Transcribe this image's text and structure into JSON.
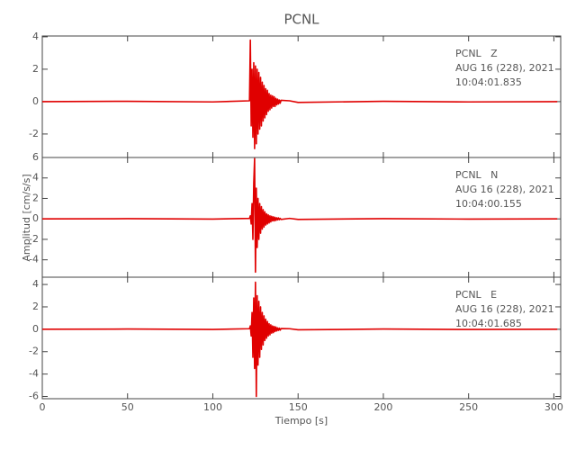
{
  "chart_data": [
    {
      "type": "line",
      "title": "PCNL",
      "annotations": [
        "PCNL   Z",
        "AUG 16 (228), 2021",
        "10:04:01.835"
      ],
      "xlim": [
        0,
        304
      ],
      "xticks": [
        0,
        50,
        100,
        150,
        200,
        250,
        300
      ],
      "ylim": [
        -3.45,
        4.05
      ],
      "yticks": [
        -2,
        0,
        2,
        4
      ],
      "series": [
        {
          "color": "#e00000",
          "x": [
            0,
            50,
            100,
            121.5,
            122,
            122.5,
            123,
            123.5,
            124,
            124.5,
            125,
            125.5,
            126,
            126.5,
            127,
            127.5,
            128,
            128.5,
            129,
            129.5,
            130,
            130.5,
            131,
            131.5,
            132,
            132.5,
            133,
            133.5,
            134,
            134.5,
            135,
            135.5,
            136,
            136.5,
            137,
            137.5,
            138,
            138.5,
            139,
            139.5,
            140,
            145,
            150,
            200,
            250,
            302
          ],
          "values": [
            0,
            0.02,
            -0.02,
            0.05,
            3.8,
            -1.5,
            2.0,
            -2.2,
            2.4,
            -2.9,
            2.2,
            -2.6,
            2.0,
            -2.0,
            1.8,
            -1.7,
            1.5,
            -1.5,
            1.2,
            -1.2,
            1.0,
            -1.0,
            0.8,
            -0.8,
            0.7,
            -0.6,
            0.5,
            -0.5,
            0.4,
            -0.4,
            0.35,
            -0.3,
            0.3,
            -0.3,
            0.2,
            -0.2,
            0.15,
            -0.15,
            0.1,
            -0.1,
            0.08,
            0.05,
            -0.05,
            0.02,
            -0.02,
            0
          ]
        }
      ]
    },
    {
      "type": "line",
      "ylabel": "Amplitud [cm/s/s]",
      "annotations": [
        "PCNL   N",
        "AUG 16 (228), 2021",
        "10:04:00.155"
      ],
      "xlim": [
        0,
        304
      ],
      "xticks": [
        0,
        50,
        100,
        150,
        200,
        250,
        300
      ],
      "ylim": [
        -5.7,
        6
      ],
      "yticks": [
        -4,
        -2,
        0,
        2,
        4,
        6
      ],
      "series": [
        {
          "color": "#e00000",
          "x": [
            0,
            50,
            100,
            121.5,
            122,
            122.5,
            123,
            123.5,
            124,
            124.5,
            125,
            125.5,
            126,
            126.5,
            127,
            127.5,
            128,
            128.5,
            129,
            129.5,
            130,
            130.5,
            131,
            131.5,
            132,
            132.5,
            133,
            133.5,
            134,
            134.5,
            135,
            135.5,
            136,
            136.5,
            137,
            137.5,
            138,
            138.5,
            139,
            139.5,
            140,
            145,
            150,
            200,
            250,
            302
          ],
          "values": [
            0,
            0.02,
            -0.02,
            0.05,
            0.3,
            -0.5,
            1.5,
            -2.0,
            3.5,
            5.9,
            -5.2,
            3.0,
            -2.8,
            2.0,
            -2.0,
            1.5,
            -1.4,
            1.2,
            -1.0,
            0.9,
            -0.8,
            0.7,
            -0.6,
            0.5,
            -0.5,
            0.4,
            -0.4,
            0.3,
            -0.3,
            0.25,
            -0.2,
            0.2,
            -0.2,
            0.15,
            -0.15,
            0.1,
            -0.1,
            0.1,
            -0.08,
            0.05,
            -0.05,
            0.05,
            -0.05,
            0.02,
            -0.02,
            0
          ]
        }
      ]
    },
    {
      "type": "line",
      "xlabel": "Tiempo [s]",
      "annotations": [
        "PCNL   E",
        "AUG 16 (228), 2021",
        "10:04:01.685"
      ],
      "xlim": [
        0,
        304
      ],
      "xticks": [
        0,
        50,
        100,
        150,
        200,
        250,
        300
      ],
      "ylim": [
        -6.2,
        4.65
      ],
      "yticks": [
        -6,
        -4,
        -2,
        0,
        2,
        4
      ],
      "series": [
        {
          "color": "#e00000",
          "x": [
            0,
            50,
            100,
            121.5,
            122,
            122.5,
            123,
            123.5,
            124,
            124.5,
            125,
            125.5,
            126,
            126.5,
            127,
            127.5,
            128,
            128.5,
            129,
            129.5,
            130,
            130.5,
            131,
            131.5,
            132,
            132.5,
            133,
            133.5,
            134,
            134.5,
            135,
            135.5,
            136,
            136.5,
            137,
            137.5,
            138,
            138.5,
            139,
            139.5,
            140,
            145,
            150,
            200,
            250,
            302
          ],
          "values": [
            0,
            0.02,
            -0.02,
            0.05,
            0.3,
            -0.6,
            1.5,
            -2.5,
            2.8,
            -3.5,
            4.2,
            -6.0,
            3.0,
            -3.2,
            2.5,
            -2.5,
            2.0,
            -1.8,
            1.5,
            -1.4,
            1.2,
            -1.0,
            0.9,
            -0.8,
            0.7,
            -0.6,
            0.5,
            -0.5,
            0.4,
            -0.35,
            0.3,
            -0.3,
            0.25,
            -0.2,
            0.2,
            -0.15,
            0.12,
            -0.1,
            0.1,
            -0.08,
            0.06,
            0.05,
            -0.05,
            0.02,
            -0.02,
            0
          ]
        }
      ]
    }
  ]
}
